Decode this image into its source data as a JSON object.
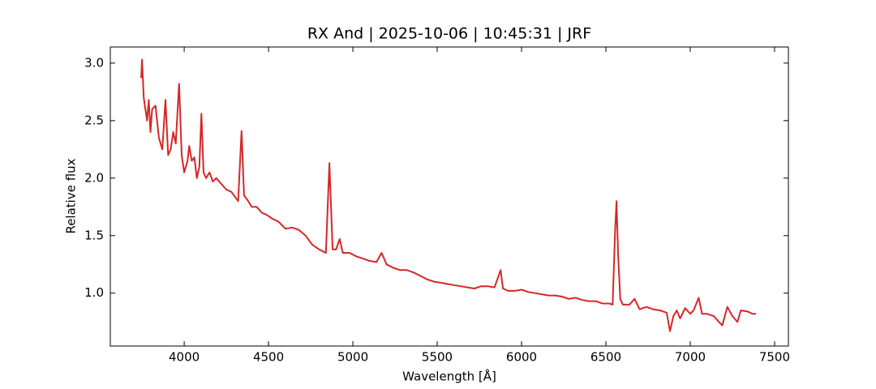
{
  "chart_data": {
    "type": "line",
    "title": "RX And | 2025-10-06 | 10:45:31 | JRF",
    "x_label": "Wavelength [Å]",
    "y_label": "Relative flux",
    "x": [
      3745,
      3750,
      3760,
      3780,
      3790,
      3800,
      3810,
      3830,
      3850,
      3870,
      3889,
      3905,
      3920,
      3935,
      3950,
      3970,
      3985,
      4000,
      4020,
      4030,
      4045,
      4060,
      4075,
      4090,
      4102,
      4115,
      4130,
      4150,
      4170,
      4190,
      4220,
      4250,
      4280,
      4320,
      4340,
      4355,
      4380,
      4400,
      4430,
      4460,
      4490,
      4520,
      4560,
      4600,
      4640,
      4680,
      4720,
      4760,
      4800,
      4840,
      4861,
      4880,
      4900,
      4922,
      4940,
      4980,
      5020,
      5060,
      5100,
      5140,
      5170,
      5200,
      5240,
      5280,
      5320,
      5360,
      5400,
      5440,
      5480,
      5520,
      5560,
      5600,
      5640,
      5680,
      5720,
      5760,
      5800,
      5840,
      5876,
      5890,
      5920,
      5960,
      6000,
      6040,
      6080,
      6120,
      6160,
      6200,
      6240,
      6280,
      6320,
      6360,
      6400,
      6440,
      6480,
      6520,
      6540,
      6555,
      6563,
      6572,
      6585,
      6600,
      6640,
      6670,
      6700,
      6740,
      6780,
      6820,
      6860,
      6880,
      6900,
      6920,
      6940,
      6970,
      7000,
      7020,
      7050,
      7070,
      7100,
      7140,
      7170,
      7190,
      7220,
      7250,
      7280,
      7300,
      7340,
      7370,
      7390
    ],
    "series": [
      {
        "name": "RX And",
        "color": "#d62728",
        "values": [
          2.87,
          3.03,
          2.7,
          2.5,
          2.68,
          2.4,
          2.6,
          2.63,
          2.35,
          2.25,
          2.68,
          2.2,
          2.25,
          2.4,
          2.3,
          2.82,
          2.2,
          2.05,
          2.15,
          2.28,
          2.15,
          2.18,
          2.0,
          2.1,
          2.56,
          2.05,
          2.0,
          2.05,
          1.97,
          2.0,
          1.95,
          1.9,
          1.88,
          1.8,
          2.41,
          1.85,
          1.8,
          1.75,
          1.75,
          1.7,
          1.68,
          1.65,
          1.62,
          1.56,
          1.57,
          1.55,
          1.5,
          1.42,
          1.38,
          1.35,
          2.13,
          1.38,
          1.38,
          1.47,
          1.35,
          1.35,
          1.32,
          1.3,
          1.28,
          1.27,
          1.35,
          1.25,
          1.22,
          1.2,
          1.2,
          1.18,
          1.15,
          1.12,
          1.1,
          1.09,
          1.08,
          1.07,
          1.06,
          1.05,
          1.04,
          1.06,
          1.06,
          1.05,
          1.2,
          1.04,
          1.02,
          1.02,
          1.03,
          1.01,
          1.0,
          0.99,
          0.98,
          0.98,
          0.97,
          0.95,
          0.96,
          0.94,
          0.93,
          0.93,
          0.91,
          0.91,
          0.9,
          1.55,
          1.8,
          1.35,
          0.95,
          0.9,
          0.9,
          0.95,
          0.86,
          0.88,
          0.86,
          0.85,
          0.83,
          0.67,
          0.8,
          0.85,
          0.78,
          0.87,
          0.82,
          0.85,
          0.96,
          0.82,
          0.82,
          0.8,
          0.75,
          0.72,
          0.88,
          0.8,
          0.75,
          0.85,
          0.84,
          0.82,
          0.82
        ]
      }
    ],
    "xlim": [
      3562,
      7582
    ],
    "ylim": [
      0.54,
      3.14
    ],
    "xticks": [
      4000,
      4500,
      5000,
      5500,
      6000,
      6500,
      7000,
      7500
    ],
    "yticks": [
      {
        "value": 1.0,
        "label": "1.0"
      },
      1.5,
      {
        "value": 2.0,
        "label": "2.0"
      },
      2.5,
      {
        "value": 3.0,
        "label": "3.0"
      }
    ],
    "grid": false
  }
}
